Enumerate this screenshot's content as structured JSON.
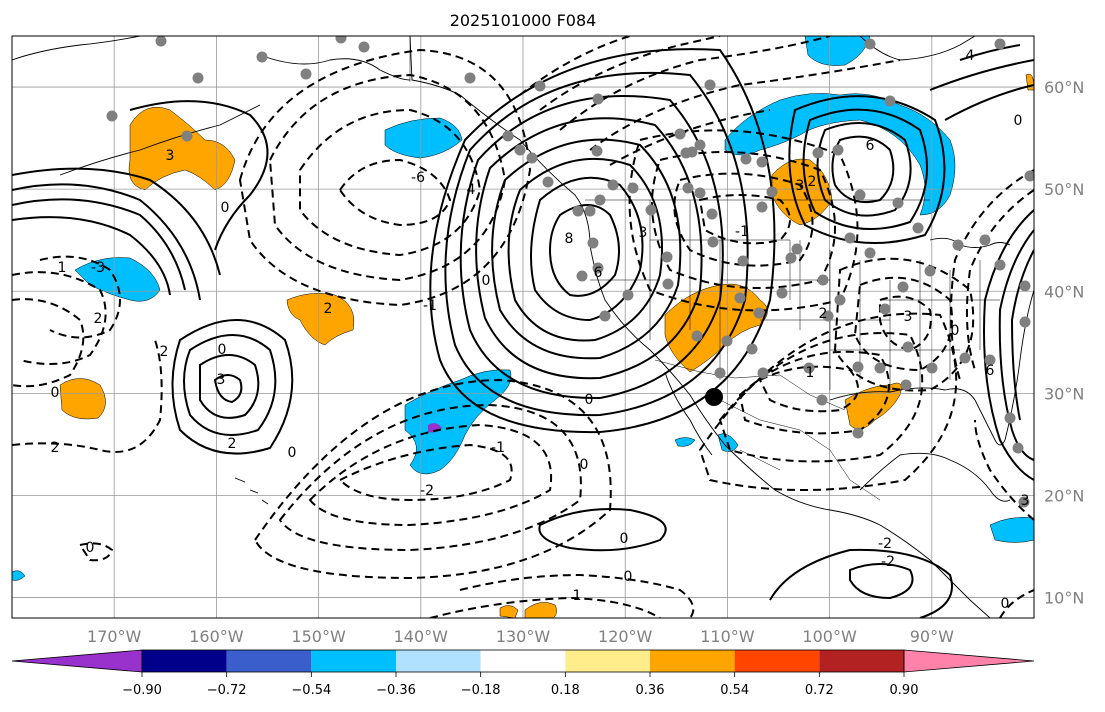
{
  "title": "2025101000 F084",
  "map": {
    "lon_range": [
      -180,
      -80
    ],
    "lat_range": [
      8,
      65
    ],
    "lat_ticks": [
      {
        "value": 60,
        "label": "60°N"
      },
      {
        "value": 50,
        "label": "50°N"
      },
      {
        "value": 40,
        "label": "40°N"
      },
      {
        "value": 30,
        "label": "30°N"
      },
      {
        "value": 20,
        "label": "20°N"
      },
      {
        "value": 10,
        "label": "10°N"
      }
    ],
    "lon_ticks": [
      {
        "value": -170,
        "label": "170°W"
      },
      {
        "value": -160,
        "label": "160°W"
      },
      {
        "value": -150,
        "label": "150°W"
      },
      {
        "value": -140,
        "label": "140°W"
      },
      {
        "value": -130,
        "label": "130°W"
      },
      {
        "value": -120,
        "label": "120°W"
      },
      {
        "value": -110,
        "label": "110°W"
      },
      {
        "value": -100,
        "label": "100°W"
      },
      {
        "value": -90,
        "label": "90°W"
      }
    ],
    "gridlines": true,
    "contour_labels": [
      "3",
      "0",
      "1",
      "2",
      "2",
      "0",
      "3",
      "2",
      "0",
      "-6",
      "4",
      "8",
      "6",
      "0",
      "3",
      "-1",
      "6",
      "2",
      "0",
      "3",
      "0",
      "-1",
      "-2",
      "0",
      "0",
      "1",
      "0",
      "-1",
      "2",
      "0",
      "2",
      "-3",
      "-2",
      "-2",
      "1",
      "3",
      "2",
      "0",
      "4",
      "6",
      "3",
      "0",
      "0"
    ]
  },
  "colorbar": {
    "colors": [
      "#9932cc",
      "#00008b",
      "#3a5fcd",
      "#00bfff",
      "#b0e2ff",
      "#ffffff",
      "#ffec8b",
      "#ffa500",
      "#ff4500",
      "#b22222",
      "#ff82ab"
    ],
    "tick_labels": [
      "−0.90",
      "−0.72",
      "−0.54",
      "−0.36",
      "−0.18",
      "0.18",
      "0.36",
      "0.54",
      "0.72",
      "0.90"
    ],
    "extend": "both"
  },
  "chart_data": {
    "type": "map",
    "title": "2025101000 F084",
    "fill_levels": [
      -0.9,
      -0.72,
      -0.54,
      -0.36,
      -0.18,
      0.18,
      0.36,
      0.54,
      0.72,
      0.9
    ],
    "fill_colors": [
      "#9932cc",
      "#00008b",
      "#3a5fcd",
      "#00bfff",
      "#b0e2ff",
      "#ffffff",
      "#ffec8b",
      "#ffa500",
      "#ff4500",
      "#b22222",
      "#ff82ab"
    ],
    "contour_labels_values": [
      -6,
      -3,
      -2,
      -1,
      0,
      1,
      2,
      3,
      4,
      6,
      8
    ],
    "xlim": [
      -180,
      -80
    ],
    "ylim": [
      8,
      65
    ],
    "grid": true
  }
}
